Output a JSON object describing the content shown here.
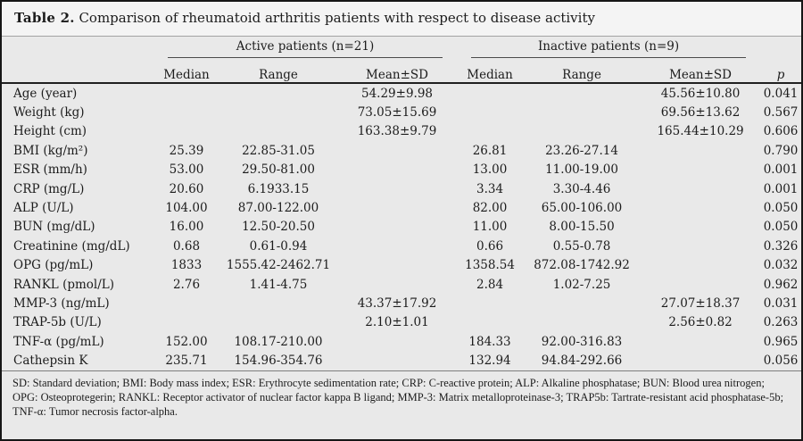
{
  "title": {
    "label": "Table 2.",
    "text": " Comparison of rheumatoid arthritis patients with respect to disease activity"
  },
  "table": {
    "groups": [
      {
        "label": "Active patients (n=21)"
      },
      {
        "label": "Inactive patients (n=9)"
      }
    ],
    "subheaders": [
      "Median",
      "Range",
      "Mean±SD",
      "Median",
      "Range",
      "Mean±SD"
    ],
    "p_label": "p",
    "rows": [
      {
        "label": "Age (year)",
        "a_median": "",
        "a_range": "",
        "a_mean": "54.29±9.98",
        "i_median": "",
        "i_range": "",
        "i_mean": "45.56±10.80",
        "p": "0.041"
      },
      {
        "label": "Weight (kg)",
        "a_median": "",
        "a_range": "",
        "a_mean": "73.05±15.69",
        "i_median": "",
        "i_range": "",
        "i_mean": "69.56±13.62",
        "p": "0.567"
      },
      {
        "label": "Height (cm)",
        "a_median": "",
        "a_range": "",
        "a_mean": "163.38±9.79",
        "i_median": "",
        "i_range": "",
        "i_mean": "165.44±10.29",
        "p": "0.606"
      },
      {
        "label": "BMI (kg/m²)",
        "a_median": "25.39",
        "a_range": "22.85-31.05",
        "a_mean": "",
        "i_median": "26.81",
        "i_range": "23.26-27.14",
        "i_mean": "",
        "p": "0.790"
      },
      {
        "label": "ESR (mm/h)",
        "a_median": "53.00",
        "a_range": "29.50-81.00",
        "a_mean": "",
        "i_median": "13.00",
        "i_range": "11.00-19.00",
        "i_mean": "",
        "p": "0.001"
      },
      {
        "label": "CRP (mg/L)",
        "a_median": "20.60",
        "a_range": "6.1933.15",
        "a_mean": "",
        "i_median": "3.34",
        "i_range": "3.30-4.46",
        "i_mean": "",
        "p": "0.001"
      },
      {
        "label": "ALP (U/L)",
        "a_median": "104.00",
        "a_range": "87.00-122.00",
        "a_mean": "",
        "i_median": "82.00",
        "i_range": "65.00-106.00",
        "i_mean": "",
        "p": "0.050"
      },
      {
        "label": "BUN (mg/dL)",
        "a_median": "16.00",
        "a_range": "12.50-20.50",
        "a_mean": "",
        "i_median": "11.00",
        "i_range": "8.00-15.50",
        "i_mean": "",
        "p": "0.050"
      },
      {
        "label": "Creatinine (mg/dL)",
        "a_median": "0.68",
        "a_range": "0.61-0.94",
        "a_mean": "",
        "i_median": "0.66",
        "i_range": "0.55-0.78",
        "i_mean": "",
        "p": "0.326"
      },
      {
        "label": "OPG (pg/mL)",
        "a_median": "1833",
        "a_range": "1555.42-2462.71",
        "a_mean": "",
        "i_median": "1358.54",
        "i_range": "872.08-1742.92",
        "i_mean": "",
        "p": "0.032"
      },
      {
        "label": "RANKL (pmol/L)",
        "a_median": "2.76",
        "a_range": "1.41-4.75",
        "a_mean": "",
        "i_median": "2.84",
        "i_range": "1.02-7.25",
        "i_mean": "",
        "p": "0.962"
      },
      {
        "label": "MMP-3 (ng/mL)",
        "a_median": "",
        "a_range": "",
        "a_mean": "43.37±17.92",
        "i_median": "",
        "i_range": "",
        "i_mean": "27.07±18.37",
        "p": "0.031"
      },
      {
        "label": "TRAP-5b (U/L)",
        "a_median": "",
        "a_range": "",
        "a_mean": "2.10±1.01",
        "i_median": "",
        "i_range": "",
        "i_mean": "2.56±0.82",
        "p": "0.263"
      },
      {
        "label": "TNF-α (pg/mL)",
        "a_median": "152.00",
        "a_range": "108.17-210.00",
        "a_mean": "",
        "i_median": "184.33",
        "i_range": "92.00-316.83",
        "i_mean": "",
        "p": "0.965"
      },
      {
        "label": "Cathepsin K",
        "a_median": "235.71",
        "a_range": "154.96-354.76",
        "a_mean": "",
        "i_median": "132.94",
        "i_range": "94.84-292.66",
        "i_mean": "",
        "p": "0.056"
      }
    ]
  },
  "footnote": "SD: Standard deviation; BMI: Body mass index; ESR: Erythrocyte sedimentation rate; CRP: C-reactive protein; ALP: Alkaline phosphatase; BUN: Blood urea nitrogen; OPG: Osteoprotegerin; RANKL: Receptor activator of nuclear factor kappa B ligand; MMP-3: Matrix metalloproteinase-3; TRAP5b: Tartrate-resistant acid phosphatase-5b; TNF-α: Tumor necrosis factor-alpha."
}
